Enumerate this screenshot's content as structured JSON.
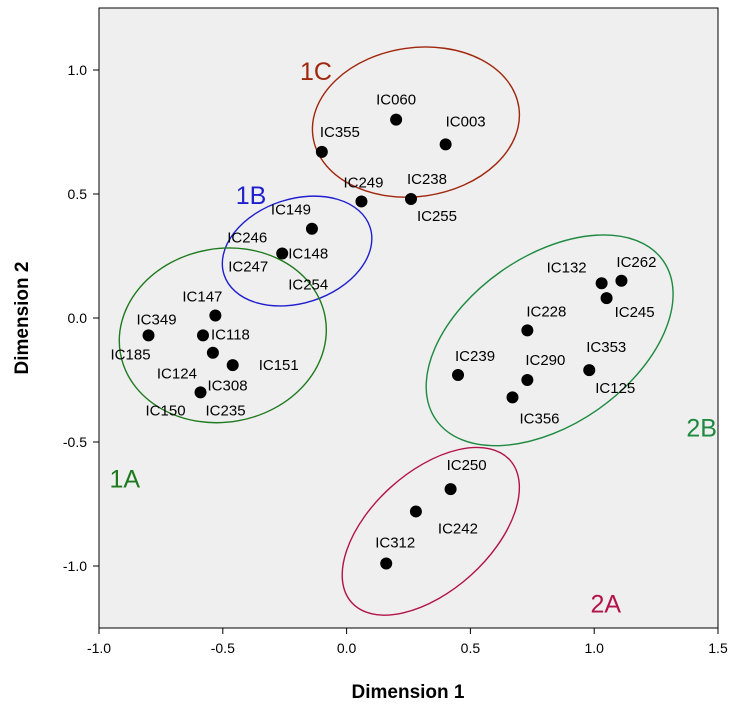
{
  "chart_data": {
    "type": "scatter",
    "xlabel": "Dimension 1",
    "ylabel": "Dimension 2",
    "xlim": [
      -1.0,
      1.5
    ],
    "ylim": [
      -1.25,
      1.25
    ],
    "xticks": [
      "-1.0",
      "-0.5",
      "0.0",
      "0.5",
      "1.0",
      "1.5"
    ],
    "yticks": [
      "-1.0",
      "-0.5",
      "0.0",
      "0.5",
      "1.0"
    ],
    "grid": false,
    "background_color": "#efefef",
    "point_color": "#000000",
    "points": [
      {
        "label": "IC060",
        "x": 0.2,
        "y": 0.8
      },
      {
        "label": "IC003",
        "x": 0.4,
        "y": 0.7
      },
      {
        "label": "IC355",
        "x": -0.1,
        "y": 0.67
      },
      {
        "label": "IC249",
        "x": 0.06,
        "y": 0.47
      },
      {
        "label": "IC238",
        "x": 0.26,
        "y": 0.48
      },
      {
        "label": "IC255",
        "x": 0.26,
        "y": 0.48
      },
      {
        "label": "IC149",
        "x": -0.14,
        "y": 0.36
      },
      {
        "label": "IC246",
        "x": -0.26,
        "y": 0.26
      },
      {
        "label": "IC148",
        "x": -0.26,
        "y": 0.26
      },
      {
        "label": "IC247",
        "x": -0.26,
        "y": 0.26
      },
      {
        "label": "IC254",
        "x": -0.26,
        "y": 0.26
      },
      {
        "label": "IC147",
        "x": -0.53,
        "y": 0.01
      },
      {
        "label": "IC349",
        "x": -0.8,
        "y": -0.07
      },
      {
        "label": "IC185",
        "x": -0.8,
        "y": -0.07
      },
      {
        "label": "IC118",
        "x": -0.58,
        "y": -0.07
      },
      {
        "label": "IC124",
        "x": -0.54,
        "y": -0.14
      },
      {
        "label": "IC151",
        "x": -0.46,
        "y": -0.19
      },
      {
        "label": "IC308",
        "x": -0.59,
        "y": -0.3
      },
      {
        "label": "IC150",
        "x": -0.59,
        "y": -0.3
      },
      {
        "label": "IC235",
        "x": -0.59,
        "y": -0.3
      },
      {
        "label": "IC132",
        "x": 1.03,
        "y": 0.14
      },
      {
        "label": "IC262",
        "x": 1.11,
        "y": 0.15
      },
      {
        "label": "IC245",
        "x": 1.05,
        "y": 0.08
      },
      {
        "label": "IC228",
        "x": 0.73,
        "y": -0.05
      },
      {
        "label": "IC239",
        "x": 0.45,
        "y": -0.23
      },
      {
        "label": "IC290",
        "x": 0.73,
        "y": -0.25
      },
      {
        "label": "IC353",
        "x": 0.98,
        "y": -0.21
      },
      {
        "label": "IC125",
        "x": 0.98,
        "y": -0.21
      },
      {
        "label": "IC356",
        "x": 0.67,
        "y": -0.32
      },
      {
        "label": "IC250",
        "x": 0.42,
        "y": -0.69
      },
      {
        "label": "IC242",
        "x": 0.28,
        "y": -0.78
      },
      {
        "label": "IC312",
        "x": 0.16,
        "y": -0.99
      }
    ],
    "clusters": [
      {
        "name": "1C",
        "color": "#a0260c",
        "cx": 0.28,
        "cy": 0.79,
        "rx": 0.42,
        "ry": 0.3
      },
      {
        "name": "1B",
        "color": "#1f1fcf",
        "cx": -0.2,
        "cy": 0.27,
        "rx": 0.31,
        "ry": 0.21
      },
      {
        "name": "1A",
        "color": "#1d7a1d",
        "cx": -0.5,
        "cy": -0.07,
        "rx": 0.42,
        "ry": 0.35
      },
      {
        "name": "2B",
        "color": "#1d8a40",
        "cx": 0.82,
        "cy": -0.09,
        "rx": 0.56,
        "ry": 0.34
      },
      {
        "name": "2A",
        "color": "#b3124a",
        "cx": 0.34,
        "cy": -0.86,
        "rx": 0.43,
        "ry": 0.24
      }
    ]
  }
}
